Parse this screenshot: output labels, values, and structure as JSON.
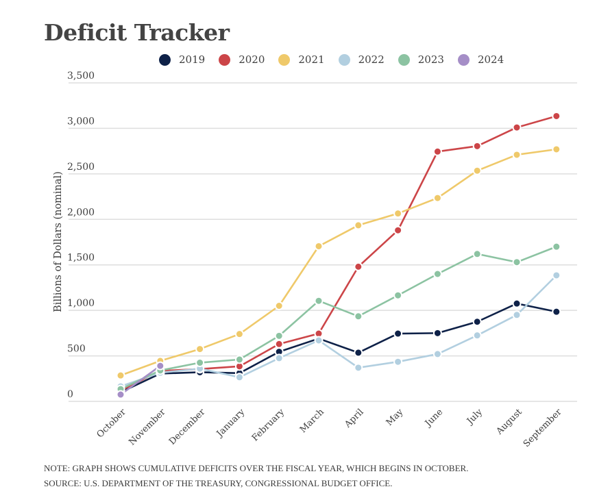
{
  "chart_data": {
    "type": "line",
    "title": "Deficit Tracker",
    "xlabel": "",
    "ylabel": "Billions of Dollars (nominal)",
    "ylim": [
      0,
      3500
    ],
    "yticks": [
      0,
      500,
      1000,
      1500,
      2000,
      2500,
      3000,
      3500
    ],
    "ytick_labels": [
      "0",
      "500",
      "1,000",
      "1,500",
      "2,000",
      "2,500",
      "3,000",
      "3,500"
    ],
    "grid": true,
    "legend_position": "top-center",
    "categories": [
      "October",
      "November",
      "December",
      "January",
      "February",
      "March",
      "April",
      "May",
      "June",
      "July",
      "August",
      "September"
    ],
    "series": [
      {
        "name": "2019",
        "color": "#0e2148",
        "values": [
          100,
          305,
          320,
          310,
          545,
          690,
          535,
          745,
          750,
          875,
          1075,
          985
        ]
      },
      {
        "name": "2020",
        "color": "#cc4548",
        "values": [
          120,
          335,
          355,
          385,
          630,
          745,
          1480,
          1880,
          2745,
          2805,
          3010,
          3135
        ]
      },
      {
        "name": "2021",
        "color": "#efc96a",
        "values": [
          285,
          445,
          575,
          740,
          1050,
          1705,
          1935,
          2065,
          2235,
          2535,
          2710,
          2770
        ]
      },
      {
        "name": "2022",
        "color": "#b2cfe0",
        "values": [
          165,
          315,
          360,
          265,
          475,
          670,
          370,
          435,
          520,
          725,
          950,
          1385
        ]
      },
      {
        "name": "2023",
        "color": "#8cc3a2",
        "values": [
          135,
          340,
          425,
          460,
          720,
          1105,
          935,
          1165,
          1400,
          1620,
          1530,
          1700
        ]
      },
      {
        "name": "2024",
        "color": "#a58ec7",
        "values": [
          75,
          390
        ]
      }
    ],
    "notes": [
      "NOTE: GRAPH SHOWS CUMULATIVE DEFICITS OVER THE FISCAL YEAR, WHICH BEGINS IN OCTOBER.",
      "SOURCE: U.S. DEPARTMENT OF THE TREASURY, CONGRESSIONAL BUDGET OFFICE."
    ]
  }
}
